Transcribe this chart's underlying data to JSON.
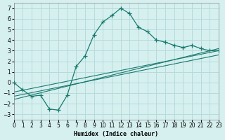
{
  "title": "",
  "xlabel": "Humidex (Indice chaleur)",
  "ylabel": "",
  "bg_color": "#d6f0f0",
  "grid_color": "#b8dada",
  "line_color": "#1a7a6e",
  "xlim": [
    0,
    23
  ],
  "ylim": [
    -3.5,
    7.5
  ],
  "yticks": [
    -3,
    -2,
    -1,
    0,
    1,
    2,
    3,
    4,
    5,
    6,
    7
  ],
  "xticks": [
    0,
    1,
    2,
    3,
    4,
    5,
    6,
    7,
    8,
    9,
    10,
    11,
    12,
    13,
    14,
    15,
    16,
    17,
    18,
    19,
    20,
    21,
    22,
    23
  ],
  "curve_x": [
    0,
    1,
    2,
    3,
    4,
    5,
    6,
    7,
    8,
    9,
    10,
    11,
    12,
    13,
    14,
    15,
    16,
    17,
    18,
    19,
    20,
    21,
    22,
    23
  ],
  "curve_y": [
    0.0,
    -0.7,
    -1.3,
    -1.2,
    -2.5,
    -2.6,
    -1.2,
    1.5,
    2.5,
    4.5,
    5.7,
    6.3,
    7.0,
    6.5,
    5.2,
    4.8,
    4.0,
    3.8,
    3.5,
    3.3,
    3.5,
    3.2,
    3.0,
    3.0
  ],
  "line1_x": [
    0,
    23
  ],
  "line1_y": [
    -0.9,
    3.0
  ],
  "line2_x": [
    0,
    23
  ],
  "line2_y": [
    -1.3,
    2.6
  ],
  "line3_x": [
    0,
    23
  ],
  "line3_y": [
    -1.6,
    3.2
  ]
}
